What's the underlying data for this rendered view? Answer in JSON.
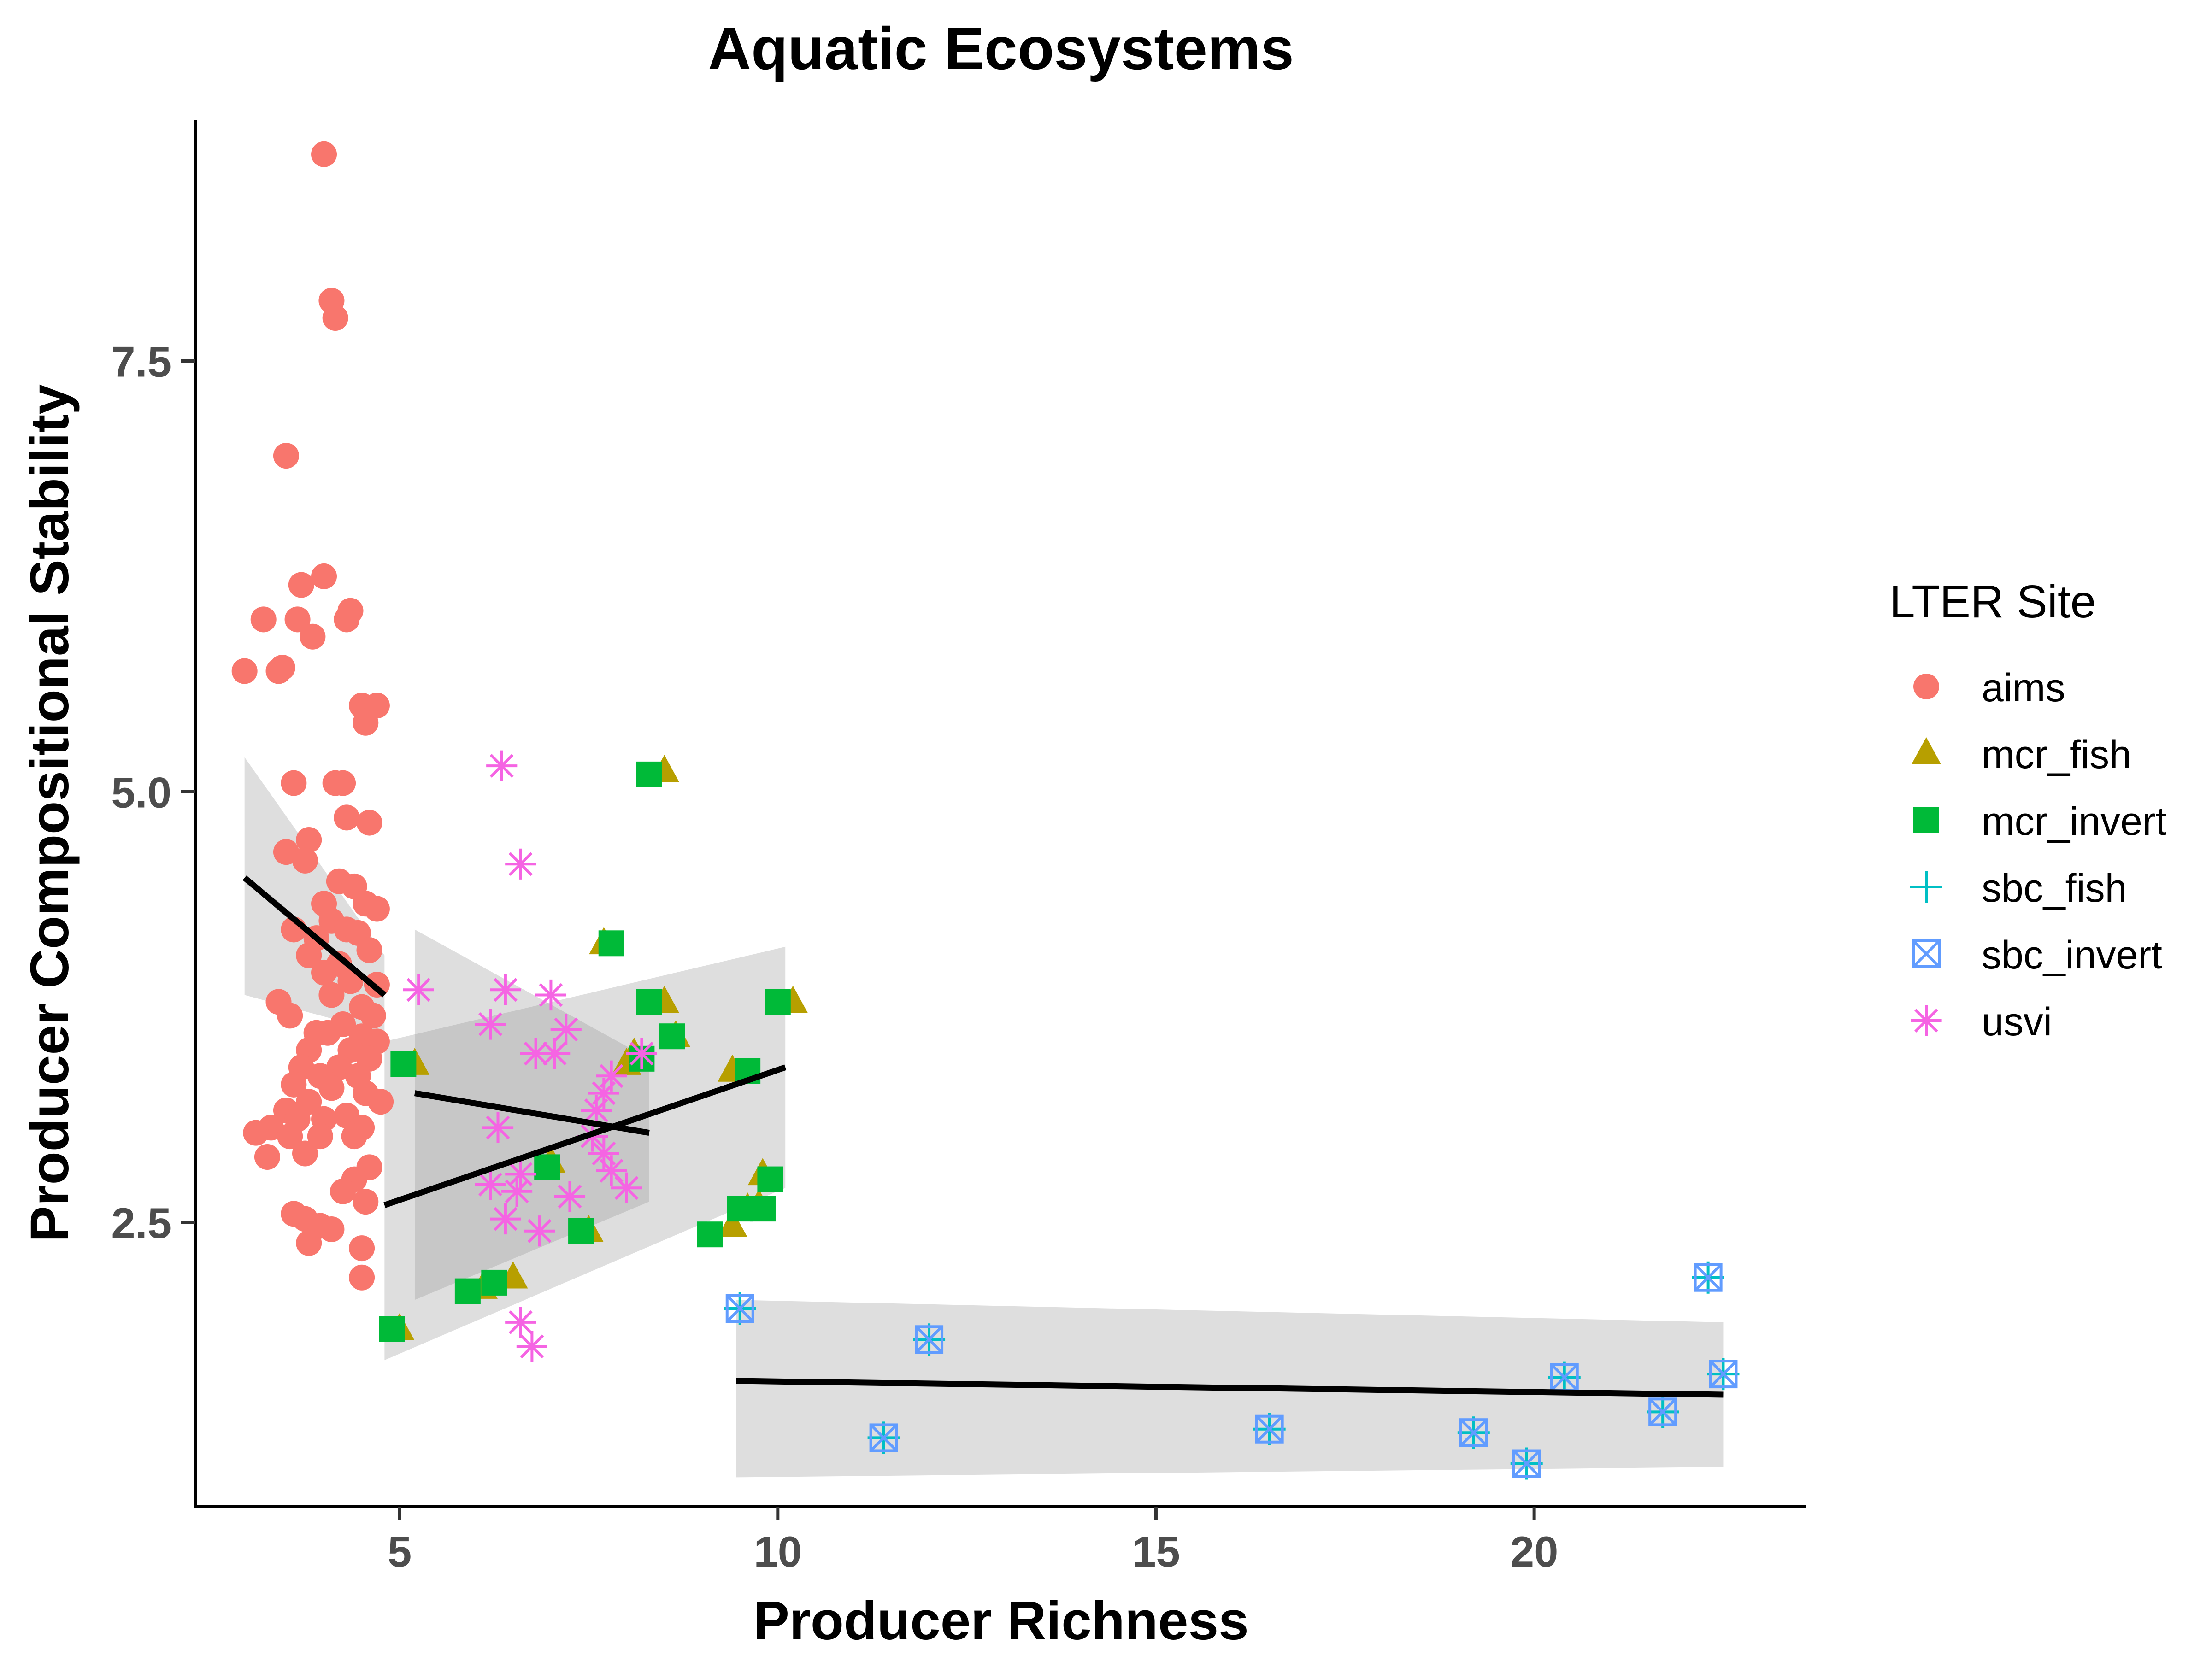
{
  "chart_data": {
    "type": "scatter",
    "title": "Aquatic Ecosystems",
    "xlabel": "Producer Richness",
    "ylabel": "Producer Compositional Stability",
    "xlim": [
      2.3,
      23.6
    ],
    "ylim": [
      0.85,
      8.9
    ],
    "x_ticks": [
      {
        "value": 5,
        "label": "5"
      },
      {
        "value": 10,
        "label": "10"
      },
      {
        "value": 15,
        "label": "15"
      },
      {
        "value": 20,
        "label": "20"
      }
    ],
    "y_ticks": [
      {
        "value": 2.5,
        "label": "2.5"
      },
      {
        "value": 5.0,
        "label": "5.0"
      },
      {
        "value": 7.5,
        "label": "7.5"
      }
    ],
    "grid": false,
    "legend": {
      "title": "LTER Site",
      "position": "right",
      "entries": [
        {
          "name": "aims",
          "shape": "circle",
          "color": "#F8766D"
        },
        {
          "name": "mcr_fish",
          "shape": "triangle",
          "color": "#B79F00"
        },
        {
          "name": "mcr_invert",
          "shape": "square",
          "color": "#00BA38"
        },
        {
          "name": "sbc_fish",
          "shape": "plus",
          "color": "#00BFC4"
        },
        {
          "name": "sbc_invert",
          "shape": "boxcross",
          "color": "#619CFF"
        },
        {
          "name": "usvi",
          "shape": "asterisk",
          "color": "#F564E3"
        }
      ]
    },
    "series": [
      {
        "name": "aims",
        "points": [
          [
            4.0,
            8.7
          ],
          [
            4.1,
            7.85
          ],
          [
            4.15,
            7.75
          ],
          [
            3.5,
            6.95
          ],
          [
            4.0,
            6.25
          ],
          [
            3.7,
            6.2
          ],
          [
            3.2,
            6.0
          ],
          [
            3.65,
            6.0
          ],
          [
            4.3,
            6.0
          ],
          [
            4.35,
            6.05
          ],
          [
            3.85,
            5.9
          ],
          [
            2.95,
            5.7
          ],
          [
            3.4,
            5.7
          ],
          [
            3.45,
            5.72
          ],
          [
            4.5,
            5.5
          ],
          [
            4.7,
            5.5
          ],
          [
            4.55,
            5.4
          ],
          [
            3.6,
            5.05
          ],
          [
            4.15,
            5.05
          ],
          [
            4.25,
            5.05
          ],
          [
            4.3,
            4.85
          ],
          [
            4.6,
            4.82
          ],
          [
            3.8,
            4.72
          ],
          [
            3.5,
            4.65
          ],
          [
            3.75,
            4.6
          ],
          [
            4.2,
            4.48
          ],
          [
            4.4,
            4.45
          ],
          [
            4.0,
            4.35
          ],
          [
            4.55,
            4.35
          ],
          [
            4.7,
            4.32
          ],
          [
            4.1,
            4.25
          ],
          [
            4.3,
            4.2
          ],
          [
            3.6,
            4.2
          ],
          [
            3.9,
            4.15
          ],
          [
            4.45,
            4.18
          ],
          [
            4.6,
            4.08
          ],
          [
            3.8,
            4.05
          ],
          [
            4.2,
            4.0
          ],
          [
            4.0,
            3.95
          ],
          [
            4.35,
            3.9
          ],
          [
            4.7,
            3.88
          ],
          [
            4.1,
            3.82
          ],
          [
            3.4,
            3.78
          ],
          [
            4.5,
            3.75
          ],
          [
            3.55,
            3.7
          ],
          [
            4.65,
            3.7
          ],
          [
            4.25,
            3.65
          ],
          [
            4.05,
            3.6
          ],
          [
            3.9,
            3.6
          ],
          [
            4.5,
            3.58
          ],
          [
            4.7,
            3.55
          ],
          [
            3.8,
            3.5
          ],
          [
            4.35,
            3.5
          ],
          [
            4.6,
            3.45
          ],
          [
            3.7,
            3.4
          ],
          [
            4.2,
            3.4
          ],
          [
            3.95,
            3.35
          ],
          [
            4.45,
            3.35
          ],
          [
            3.6,
            3.3
          ],
          [
            4.1,
            3.28
          ],
          [
            4.55,
            3.25
          ],
          [
            3.8,
            3.2
          ],
          [
            4.75,
            3.2
          ],
          [
            3.5,
            3.15
          ],
          [
            4.3,
            3.12
          ],
          [
            3.65,
            3.1
          ],
          [
            4.0,
            3.1
          ],
          [
            3.3,
            3.05
          ],
          [
            4.5,
            3.05
          ],
          [
            3.1,
            3.02
          ],
          [
            3.55,
            3.0
          ],
          [
            3.95,
            3.0
          ],
          [
            4.4,
            3.0
          ],
          [
            3.75,
            2.9
          ],
          [
            3.25,
            2.88
          ],
          [
            4.6,
            2.82
          ],
          [
            4.4,
            2.75
          ],
          [
            4.25,
            2.68
          ],
          [
            4.55,
            2.62
          ],
          [
            3.6,
            2.55
          ],
          [
            3.75,
            2.52
          ],
          [
            3.95,
            2.48
          ],
          [
            4.1,
            2.46
          ],
          [
            3.8,
            2.38
          ],
          [
            4.5,
            2.35
          ],
          [
            4.5,
            2.18
          ]
        ]
      },
      {
        "name": "mcr_fish",
        "points": [
          [
            8.5,
            5.12
          ],
          [
            7.7,
            4.12
          ],
          [
            8.5,
            3.78
          ],
          [
            10.2,
            3.78
          ],
          [
            8.65,
            3.58
          ],
          [
            8.1,
            3.48
          ],
          [
            8.0,
            3.42
          ],
          [
            9.4,
            3.38
          ],
          [
            5.2,
            3.42
          ],
          [
            7.0,
            2.85
          ],
          [
            9.8,
            2.78
          ],
          [
            7.5,
            2.45
          ],
          [
            9.4,
            2.48
          ],
          [
            9.6,
            2.58
          ],
          [
            9.75,
            2.6
          ],
          [
            6.5,
            2.18
          ],
          [
            6.1,
            2.12
          ],
          [
            5.0,
            1.88
          ]
        ]
      },
      {
        "name": "mcr_invert",
        "points": [
          [
            8.3,
            5.1
          ],
          [
            7.8,
            4.12
          ],
          [
            8.3,
            3.78
          ],
          [
            10.0,
            3.78
          ],
          [
            8.6,
            3.58
          ],
          [
            8.2,
            3.45
          ],
          [
            9.6,
            3.38
          ],
          [
            5.05,
            3.42
          ],
          [
            6.95,
            2.82
          ],
          [
            9.9,
            2.75
          ],
          [
            7.4,
            2.45
          ],
          [
            9.1,
            2.43
          ],
          [
            9.5,
            2.58
          ],
          [
            9.8,
            2.58
          ],
          [
            6.25,
            2.15
          ],
          [
            5.9,
            2.1
          ],
          [
            4.9,
            1.88
          ]
        ]
      },
      {
        "name": "sbc_fish",
        "points": [
          [
            9.5,
            2.0
          ],
          [
            12.0,
            1.82
          ],
          [
            11.4,
            1.25
          ],
          [
            16.5,
            1.3
          ],
          [
            19.2,
            1.28
          ],
          [
            19.9,
            1.1
          ],
          [
            20.4,
            1.6
          ],
          [
            21.7,
            1.4
          ],
          [
            22.3,
            2.18
          ],
          [
            22.5,
            1.62
          ]
        ]
      },
      {
        "name": "sbc_invert",
        "points": [
          [
            9.5,
            2.0
          ],
          [
            12.0,
            1.82
          ],
          [
            11.4,
            1.25
          ],
          [
            16.5,
            1.3
          ],
          [
            19.2,
            1.28
          ],
          [
            19.9,
            1.1
          ],
          [
            20.4,
            1.6
          ],
          [
            21.7,
            1.4
          ],
          [
            22.3,
            2.18
          ],
          [
            22.5,
            1.62
          ]
        ]
      },
      {
        "name": "usvi",
        "points": [
          [
            6.35,
            5.15
          ],
          [
            6.6,
            4.58
          ],
          [
            5.25,
            3.85
          ],
          [
            6.4,
            3.85
          ],
          [
            7.0,
            3.82
          ],
          [
            6.2,
            3.65
          ],
          [
            7.2,
            3.62
          ],
          [
            6.8,
            3.48
          ],
          [
            7.05,
            3.48
          ],
          [
            8.2,
            3.48
          ],
          [
            7.8,
            3.35
          ],
          [
            7.7,
            3.25
          ],
          [
            7.6,
            3.15
          ],
          [
            6.3,
            3.05
          ],
          [
            7.55,
            3.0
          ],
          [
            7.7,
            2.9
          ],
          [
            7.8,
            2.8
          ],
          [
            6.6,
            2.78
          ],
          [
            6.2,
            2.72
          ],
          [
            6.55,
            2.68
          ],
          [
            7.25,
            2.65
          ],
          [
            8.0,
            2.7
          ],
          [
            6.4,
            2.52
          ],
          [
            6.85,
            2.45
          ],
          [
            6.6,
            1.92
          ],
          [
            6.75,
            1.78
          ]
        ]
      }
    ],
    "trend_lines": [
      {
        "name": "aims",
        "x": [
          2.95,
          4.8
        ],
        "y": [
          4.5,
          3.82
        ],
        "ci_low": [
          3.82,
          3.6
        ],
        "ci_high": [
          5.2,
          4.05
        ]
      },
      {
        "name": "mcr",
        "x": [
          4.8,
          10.1
        ],
        "y": [
          2.6,
          3.4
        ],
        "ci_low": [
          1.7,
          2.7
        ],
        "ci_high": [
          3.55,
          4.1
        ]
      },
      {
        "name": "usvi",
        "x": [
          5.2,
          8.3
        ],
        "y": [
          3.25,
          3.02
        ],
        "ci_low": [
          2.05,
          2.62
        ],
        "ci_high": [
          4.2,
          3.45
        ]
      },
      {
        "name": "sbc",
        "x": [
          9.45,
          22.5
        ],
        "y": [
          1.58,
          1.5
        ],
        "ci_low": [
          1.02,
          1.08
        ],
        "ci_high": [
          2.05,
          1.92
        ]
      }
    ]
  }
}
